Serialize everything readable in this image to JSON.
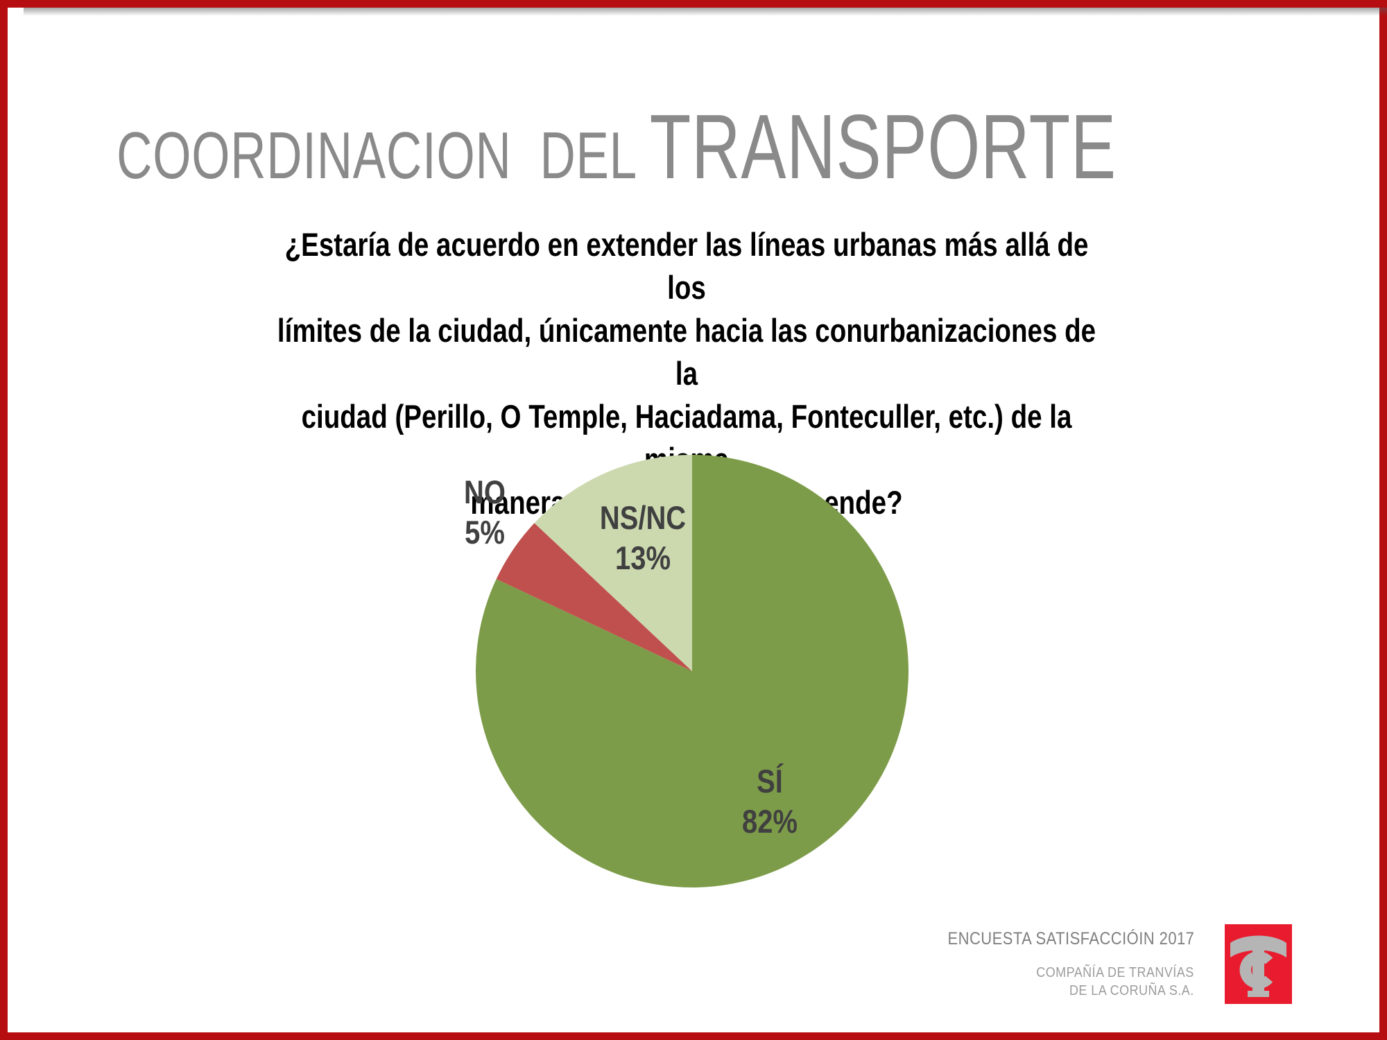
{
  "slide": {
    "title": {
      "part1": "COORDINACION  DEL ",
      "part2": "TRANSPORTE"
    },
    "question": "¿Estaría de acuerdo en extender las líneas urbanas más allá de los\nlímites de la ciudad, únicamente hacia las conurbanizaciones de la\nciudad (Perillo, O Temple, Haciadama, Fonteculler, etc.) de la misma\nmanera que se hizo en Meicende?",
    "footer": {
      "survey": "ENCUESTA SATISFACCIÓIN 2017",
      "company": "COMPAÑÍA DE TRANVÍAS\nDE LA CORUÑA S.A."
    }
  },
  "chart_data": {
    "type": "pie",
    "title": "",
    "start_angle_deg": 0,
    "direction": "clockwise",
    "categories": [
      "SÍ",
      "NO",
      "NS/NC"
    ],
    "values": [
      82,
      5,
      13
    ],
    "slices": [
      {
        "label": "SÍ",
        "value": 82,
        "color": "#7d9c49"
      },
      {
        "label": "NO",
        "value": 5,
        "color": "#c0504d"
      },
      {
        "label": "NS/NC",
        "value": 13,
        "color": "#ccd9af"
      }
    ],
    "labels": {
      "si": {
        "name": "SÍ",
        "pct": "82%"
      },
      "no": {
        "name": "NO",
        "pct": "5%"
      },
      "nsnc": {
        "name": "NS/NC",
        "pct": "13%"
      }
    },
    "legend": "none",
    "label_color": "#404040"
  },
  "colors": {
    "frame_red": "#b60d10",
    "title_gray": "#8a8a8a",
    "question_black": "#000000",
    "footer_gray": "#7f7f7f",
    "company_gray": "#9c9c9c",
    "logo_red": "#e81c2e",
    "logo_monogram_gray": "#b5b5b5"
  }
}
